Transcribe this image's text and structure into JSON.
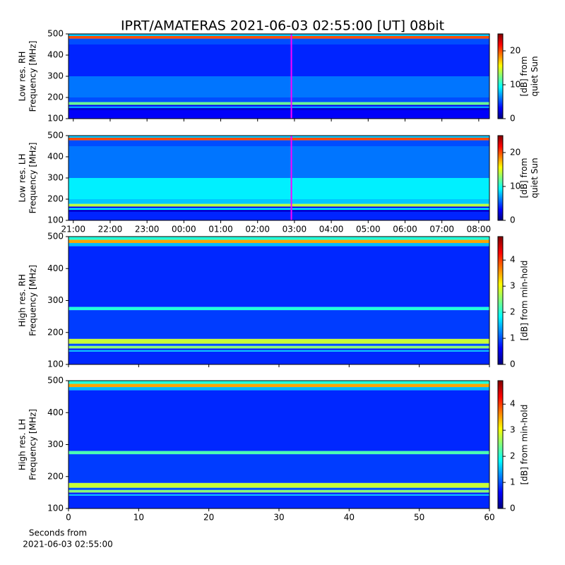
{
  "chart_data": [
    {
      "type": "heatmap",
      "title": "IPRT/AMATERAS 2021-06-03 02:55:00 [UT]   08bit",
      "ylabel": [
        "Low res. RH",
        "Frequency [MHz]"
      ],
      "xlim": [
        20.87,
        32.29
      ],
      "xticks": [
        {
          "value": 21,
          "label": "21:00"
        },
        {
          "value": 22,
          "label": "22:00"
        },
        {
          "value": 23,
          "label": "23:00"
        },
        {
          "value": 24,
          "label": "00:00"
        },
        {
          "value": 25,
          "label": "01:00"
        },
        {
          "value": 26,
          "label": "02:00"
        },
        {
          "value": 27,
          "label": "03:00"
        },
        {
          "value": 28,
          "label": "04:00"
        },
        {
          "value": 29,
          "label": "05:00"
        },
        {
          "value": 30,
          "label": "06:00"
        },
        {
          "value": 31,
          "label": "07:00"
        },
        {
          "value": 32,
          "label": "08:00"
        }
      ],
      "xtick_labels_shown": false,
      "ylim": [
        100,
        500
      ],
      "yticks": [
        100,
        200,
        300,
        400,
        500
      ],
      "y_bins": [
        100,
        140,
        150,
        158,
        165,
        178,
        200,
        300,
        450,
        478,
        490,
        500
      ],
      "values": [
        3,
        2,
        7,
        3,
        12,
        5,
        6,
        4,
        5,
        20,
        8
      ],
      "colorbar": {
        "label": [
          "[dB] from",
          "quiet Sun"
        ],
        "lim": [
          0,
          25
        ],
        "ticks": [
          0,
          10,
          20
        ],
        "colormap": "jet"
      },
      "marker_x": 26.9167,
      "marker_color": "#ff00ff"
    },
    {
      "type": "heatmap",
      "ylabel": [
        "Low res. LH",
        "Frequency [MHz]"
      ],
      "xlim": [
        20.87,
        32.29
      ],
      "xticks": [
        {
          "value": 21,
          "label": "21:00"
        },
        {
          "value": 22,
          "label": "22:00"
        },
        {
          "value": 23,
          "label": "23:00"
        },
        {
          "value": 24,
          "label": "00:00"
        },
        {
          "value": 25,
          "label": "01:00"
        },
        {
          "value": 26,
          "label": "02:00"
        },
        {
          "value": 27,
          "label": "03:00"
        },
        {
          "value": 28,
          "label": "04:00"
        },
        {
          "value": 29,
          "label": "05:00"
        },
        {
          "value": 30,
          "label": "06:00"
        },
        {
          "value": 31,
          "label": "07:00"
        },
        {
          "value": 32,
          "label": "08:00"
        }
      ],
      "xtick_labels_shown": true,
      "ylim": [
        100,
        500
      ],
      "yticks": [
        100,
        200,
        300,
        400,
        500
      ],
      "y_bins": [
        100,
        140,
        150,
        158,
        165,
        178,
        200,
        300,
        450,
        478,
        490,
        500
      ],
      "values": [
        4,
        2,
        9,
        3,
        14,
        8,
        9,
        6,
        5,
        20,
        8
      ],
      "colorbar": {
        "label": [
          "[dB] from",
          "quiet Sun"
        ],
        "lim": [
          0,
          25
        ],
        "ticks": [
          0,
          10,
          20
        ],
        "colormap": "jet"
      },
      "marker_x": 26.9167,
      "marker_color": "#ff00ff"
    },
    {
      "type": "heatmap",
      "ylabel": [
        "High res. RH",
        "Frequency [MHz]"
      ],
      "xlim": [
        0,
        60
      ],
      "xticks": [
        0,
        10,
        20,
        30,
        40,
        50,
        60
      ],
      "xtick_labels_shown": false,
      "ylim": [
        100,
        500
      ],
      "yticks": [
        100,
        200,
        300,
        400,
        500
      ],
      "y_bins": [
        100,
        140,
        145,
        150,
        158,
        165,
        180,
        270,
        280,
        470,
        480,
        490,
        500
      ],
      "values": [
        0.8,
        1.5,
        0.7,
        2.5,
        1,
        2.8,
        0.9,
        2,
        0.8,
        1.5,
        3.5,
        2
      ],
      "colorbar": {
        "label": [
          "[dB] from min-hold"
        ],
        "lim": [
          0,
          4.9
        ],
        "ticks": [
          0,
          1,
          2,
          3,
          4
        ],
        "colormap": "jet"
      }
    },
    {
      "type": "heatmap",
      "ylabel": [
        "High res. LH",
        "Frequency [MHz]"
      ],
      "xlabel": [
        "Seconds from",
        "2021-06-03 02:55:00"
      ],
      "xlim": [
        0,
        60
      ],
      "xticks": [
        0,
        10,
        20,
        30,
        40,
        50,
        60
      ],
      "xtick_labels_shown": true,
      "ylim": [
        100,
        500
      ],
      "yticks": [
        100,
        200,
        300,
        400,
        500
      ],
      "y_bins": [
        100,
        140,
        145,
        150,
        158,
        165,
        180,
        270,
        280,
        470,
        480,
        490,
        500
      ],
      "values": [
        0.8,
        1.5,
        0.7,
        2.5,
        1,
        2.8,
        0.9,
        2.2,
        0.8,
        1.5,
        3.5,
        2
      ],
      "colorbar": {
        "label": [
          "[dB] from min-hold"
        ],
        "lim": [
          0,
          4.9
        ],
        "ticks": [
          0,
          1,
          2,
          3,
          4
        ],
        "colormap": "jet"
      }
    }
  ]
}
